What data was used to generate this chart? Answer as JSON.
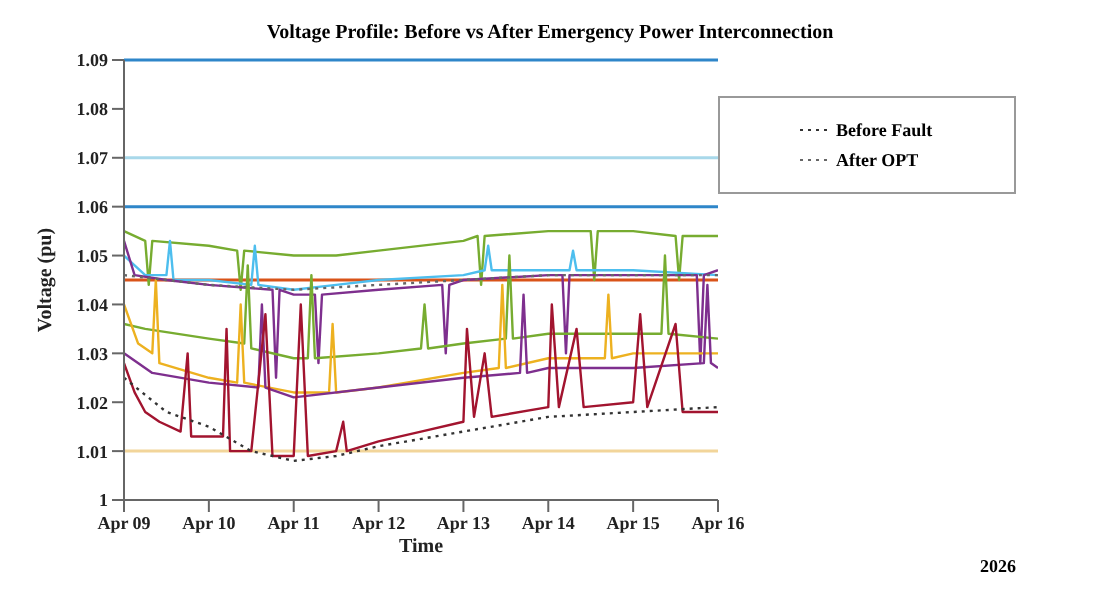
{
  "chart_data": {
    "type": "line",
    "title": "Voltage Profile: Before vs After Emergency Power Interconnection",
    "xlabel": "Time",
    "ylabel": "Voltage (pu)",
    "xlim": [
      "2026-04-09",
      "2026-04-16"
    ],
    "xticks": [
      {
        "value": "2026-04-09",
        "label": "Apr 09"
      },
      {
        "value": "2026-04-10",
        "label": "Apr 10"
      },
      {
        "value": "2026-04-11",
        "label": "Apr 11"
      },
      {
        "value": "2026-04-12",
        "label": "Apr 12"
      },
      {
        "value": "2026-04-13",
        "label": "Apr 13"
      },
      {
        "value": "2026-04-14",
        "label": "Apr 14"
      },
      {
        "value": "2026-04-15",
        "label": "Apr 15"
      },
      {
        "value": "2026-04-16",
        "label": "Apr 16"
      }
    ],
    "ylim": [
      1,
      1.09
    ],
    "yticks": [
      1,
      1.01,
      1.02,
      1.03,
      1.04,
      1.05,
      1.06,
      1.07,
      1.08,
      1.09
    ],
    "annotations": [
      "2026"
    ],
    "grid": false,
    "legend": "top right",
    "marker": "none",
    "line_style": "solid",
    "ref_lines": [
      {
        "axis": "y",
        "value": 1.09,
        "color": "#2e86c9"
      },
      {
        "axis": "y",
        "value": 1.07,
        "color": "#a8d8ea"
      },
      {
        "axis": "y",
        "value": 1.06,
        "color": "#2e86c9"
      },
      {
        "axis": "y",
        "value": 1.045,
        "color": "#d95319"
      },
      {
        "axis": "y",
        "value": 1.01,
        "color": "#f2d59a"
      }
    ],
    "series": [
      {
        "color": "#77ac30",
        "x": [
          "2026-04-09T00:00",
          "2026-04-09T06:00",
          "2026-04-09T07:00",
          "2026-04-09T08:00",
          "2026-04-10T00:00",
          "2026-04-10T08:00",
          "2026-04-10T09:00",
          "2026-04-10T10:00",
          "2026-04-11T00:00",
          "2026-04-11T12:00",
          "2026-04-12T00:00",
          "2026-04-13T00:00",
          "2026-04-13T04:00",
          "2026-04-13T05:00",
          "2026-04-13T06:00",
          "2026-04-14T00:00",
          "2026-04-14T12:00",
          "2026-04-14T13:00",
          "2026-04-14T14:00",
          "2026-04-15T00:00",
          "2026-04-15T12:00",
          "2026-04-15T13:00",
          "2026-04-15T14:00",
          "2026-04-16T00:00"
        ],
        "values": [
          1.055,
          1.053,
          1.044,
          1.053,
          1.052,
          1.051,
          1.043,
          1.051,
          1.05,
          1.05,
          1.051,
          1.053,
          1.054,
          1.044,
          1.054,
          1.055,
          1.055,
          1.045,
          1.055,
          1.055,
          1.054,
          1.045,
          1.054,
          1.054
        ]
      },
      {
        "color": "#4dbeee",
        "x": [
          "2026-04-09T00:00",
          "2026-04-09T06:00",
          "2026-04-09T12:00",
          "2026-04-09T13:00",
          "2026-04-09T14:00",
          "2026-04-10T00:00",
          "2026-04-10T12:00",
          "2026-04-10T13:00",
          "2026-04-10T14:00",
          "2026-04-11T00:00",
          "2026-04-11T12:00",
          "2026-04-12T00:00",
          "2026-04-13T00:00",
          "2026-04-13T06:00",
          "2026-04-13T07:00",
          "2026-04-13T08:00",
          "2026-04-14T00:00",
          "2026-04-14T06:00",
          "2026-04-14T07:00",
          "2026-04-14T08:00",
          "2026-04-15T00:00",
          "2026-04-16T00:00"
        ],
        "values": [
          1.05,
          1.046,
          1.046,
          1.053,
          1.045,
          1.045,
          1.044,
          1.052,
          1.044,
          1.043,
          1.044,
          1.045,
          1.046,
          1.047,
          1.052,
          1.047,
          1.047,
          1.047,
          1.051,
          1.047,
          1.047,
          1.046
        ]
      },
      {
        "color": "#7e2f8e",
        "x": [
          "2026-04-09T00:00",
          "2026-04-09T03:00",
          "2026-04-09T12:00",
          "2026-04-10T00:00",
          "2026-04-10T18:00",
          "2026-04-10T19:00",
          "2026-04-10T20:00",
          "2026-04-11T00:00",
          "2026-04-11T06:00",
          "2026-04-11T07:00",
          "2026-04-11T08:00",
          "2026-04-12T00:00",
          "2026-04-12T18:00",
          "2026-04-12T19:00",
          "2026-04-12T20:00",
          "2026-04-13T00:00",
          "2026-04-14T00:00",
          "2026-04-14T04:00",
          "2026-04-14T05:00",
          "2026-04-14T06:00",
          "2026-04-15T00:00",
          "2026-04-15T18:00",
          "2026-04-15T19:00",
          "2026-04-15T20:00",
          "2026-04-16T00:00"
        ],
        "values": [
          1.053,
          1.046,
          1.045,
          1.044,
          1.043,
          1.025,
          1.043,
          1.042,
          1.042,
          1.028,
          1.042,
          1.043,
          1.044,
          1.03,
          1.044,
          1.045,
          1.046,
          1.046,
          1.03,
          1.046,
          1.046,
          1.046,
          1.028,
          1.046,
          1.047
        ]
      },
      {
        "color": "#77ac30",
        "x": [
          "2026-04-09T00:00",
          "2026-04-09T06:00",
          "2026-04-10T00:00",
          "2026-04-10T10:00",
          "2026-04-10T11:00",
          "2026-04-10T12:00",
          "2026-04-11T00:00",
          "2026-04-11T04:00",
          "2026-04-11T05:00",
          "2026-04-11T06:00",
          "2026-04-12T00:00",
          "2026-04-12T12:00",
          "2026-04-12T13:00",
          "2026-04-12T14:00",
          "2026-04-13T00:00",
          "2026-04-13T12:00",
          "2026-04-13T13:00",
          "2026-04-13T14:00",
          "2026-04-14T00:00",
          "2026-04-15T00:00",
          "2026-04-15T08:00",
          "2026-04-15T09:00",
          "2026-04-15T10:00",
          "2026-04-16T00:00"
        ],
        "values": [
          1.036,
          1.035,
          1.033,
          1.032,
          1.048,
          1.031,
          1.029,
          1.029,
          1.046,
          1.029,
          1.03,
          1.031,
          1.04,
          1.031,
          1.032,
          1.033,
          1.05,
          1.033,
          1.034,
          1.034,
          1.034,
          1.05,
          1.034,
          1.033
        ]
      },
      {
        "color": "#edb120",
        "x": [
          "2026-04-09T00:00",
          "2026-04-09T04:00",
          "2026-04-09T08:00",
          "2026-04-09T09:00",
          "2026-04-09T10:00",
          "2026-04-10T00:00",
          "2026-04-10T08:00",
          "2026-04-10T09:00",
          "2026-04-10T10:00",
          "2026-04-11T00:00",
          "2026-04-11T10:00",
          "2026-04-11T11:00",
          "2026-04-11T12:00",
          "2026-04-12T00:00",
          "2026-04-13T00:00",
          "2026-04-13T10:00",
          "2026-04-13T11:00",
          "2026-04-13T12:00",
          "2026-04-14T00:00",
          "2026-04-14T16:00",
          "2026-04-14T17:00",
          "2026-04-14T18:00",
          "2026-04-15T00:00",
          "2026-04-16T00:00"
        ],
        "values": [
          1.04,
          1.032,
          1.03,
          1.045,
          1.028,
          1.025,
          1.024,
          1.04,
          1.024,
          1.022,
          1.022,
          1.036,
          1.022,
          1.023,
          1.026,
          1.027,
          1.044,
          1.027,
          1.029,
          1.029,
          1.042,
          1.029,
          1.03,
          1.03
        ]
      },
      {
        "color": "#7e2f8e",
        "x": [
          "2026-04-09T00:00",
          "2026-04-09T08:00",
          "2026-04-10T00:00",
          "2026-04-10T14:00",
          "2026-04-10T15:00",
          "2026-04-10T16:00",
          "2026-04-11T00:00",
          "2026-04-12T00:00",
          "2026-04-13T00:00",
          "2026-04-13T16:00",
          "2026-04-13T17:00",
          "2026-04-13T18:00",
          "2026-04-14T00:00",
          "2026-04-15T00:00",
          "2026-04-15T20:00",
          "2026-04-15T21:00",
          "2026-04-15T22:00",
          "2026-04-16T00:00"
        ],
        "values": [
          1.03,
          1.026,
          1.024,
          1.023,
          1.04,
          1.023,
          1.021,
          1.023,
          1.025,
          1.026,
          1.042,
          1.026,
          1.027,
          1.027,
          1.028,
          1.044,
          1.028,
          1.027
        ]
      },
      {
        "color": "#a2142f",
        "x": [
          "2026-04-09T00:00",
          "2026-04-09T03:00",
          "2026-04-09T06:00",
          "2026-04-09T10:00",
          "2026-04-09T16:00",
          "2026-04-09T18:00",
          "2026-04-09T19:00",
          "2026-04-10T00:00",
          "2026-04-10T04:00",
          "2026-04-10T05:00",
          "2026-04-10T06:00",
          "2026-04-10T12:00",
          "2026-04-10T16:00",
          "2026-04-10T18:00",
          "2026-04-11T00:00",
          "2026-04-11T02:00",
          "2026-04-11T04:00",
          "2026-04-11T12:00",
          "2026-04-11T14:00",
          "2026-04-11T15:00",
          "2026-04-12T00:00",
          "2026-04-12T12:00",
          "2026-04-13T00:00",
          "2026-04-13T01:00",
          "2026-04-13T03:00",
          "2026-04-13T06:00",
          "2026-04-13T08:00",
          "2026-04-14T00:00",
          "2026-04-14T01:00",
          "2026-04-14T03:00",
          "2026-04-14T08:00",
          "2026-04-14T10:00",
          "2026-04-15T00:00",
          "2026-04-15T02:00",
          "2026-04-15T04:00",
          "2026-04-15T12:00",
          "2026-04-15T14:00",
          "2026-04-16T00:00"
        ],
        "values": [
          1.028,
          1.022,
          1.018,
          1.016,
          1.014,
          1.03,
          1.013,
          1.013,
          1.013,
          1.035,
          1.01,
          1.01,
          1.038,
          1.009,
          1.009,
          1.04,
          1.009,
          1.01,
          1.016,
          1.01,
          1.012,
          1.014,
          1.016,
          1.035,
          1.017,
          1.03,
          1.017,
          1.019,
          1.04,
          1.019,
          1.035,
          1.019,
          1.02,
          1.038,
          1.019,
          1.036,
          1.018,
          1.018
        ]
      },
      {
        "name": "Before Fault",
        "color": "#333333",
        "line_style": "dotted",
        "x": [
          "2026-04-09T00:00",
          "2026-04-09T12:00",
          "2026-04-10T00:00",
          "2026-04-10T12:00",
          "2026-04-11T00:00",
          "2026-04-11T12:00",
          "2026-04-12T00:00",
          "2026-04-13T00:00",
          "2026-04-14T00:00",
          "2026-04-15T00:00",
          "2026-04-16T00:00"
        ],
        "values": [
          1.025,
          1.018,
          1.015,
          1.01,
          1.008,
          1.009,
          1.011,
          1.014,
          1.017,
          1.018,
          1.019
        ]
      },
      {
        "name": "After OPT",
        "color": "#666666",
        "line_style": "dotted",
        "x": [
          "2026-04-09T00:00",
          "2026-04-10T00:00",
          "2026-04-11T00:00",
          "2026-04-12T00:00",
          "2026-04-13T00:00",
          "2026-04-14T00:00",
          "2026-04-15T00:00",
          "2026-04-16T00:00"
        ],
        "values": [
          1.046,
          1.044,
          1.043,
          1.044,
          1.045,
          1.046,
          1.046,
          1.046
        ]
      }
    ]
  }
}
